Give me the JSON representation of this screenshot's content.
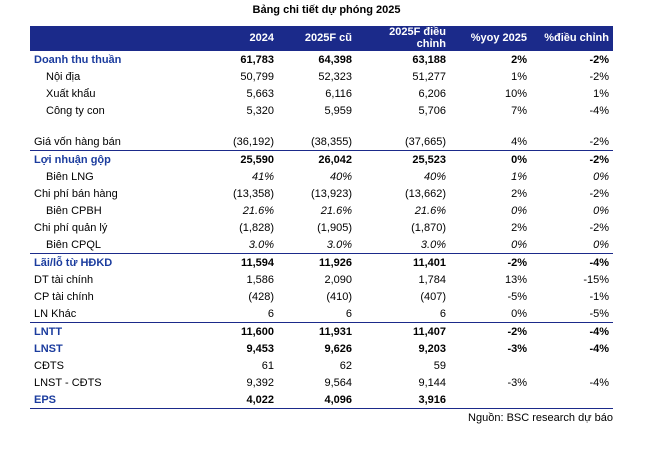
{
  "title": "Bảng chi tiết dự phóng 2025",
  "columns": [
    "",
    "2024",
    "2025F cũ",
    "2025F điều chỉnh",
    "%yoy 2025",
    "%điều chỉnh"
  ],
  "rows": [
    {
      "label": "Doanh thu thuần",
      "v2024": "61,783",
      "old": "64,398",
      "adj": "63,188",
      "yoy": "2%",
      "chg": "-2%"
    },
    {
      "label": "Nội địa",
      "v2024": "50,799",
      "old": "52,323",
      "adj": "51,277",
      "yoy": "1%",
      "chg": "-2%"
    },
    {
      "label": "Xuất khẩu",
      "v2024": "5,663",
      "old": "6,116",
      "adj": "6,206",
      "yoy": "10%",
      "chg": "1%"
    },
    {
      "label": "Công ty con",
      "v2024": "5,320",
      "old": "5,959",
      "adj": "5,706",
      "yoy": "7%",
      "chg": "-4%"
    },
    {
      "label": "Giá vốn hàng bán",
      "v2024": "(36,192)",
      "old": "(38,355)",
      "adj": "(37,665)",
      "yoy": "4%",
      "chg": "-2%"
    },
    {
      "label": "Lợi nhuận gộp",
      "v2024": "25,590",
      "old": "26,042",
      "adj": "25,523",
      "yoy": "0%",
      "chg": "-2%"
    },
    {
      "label": "Biên LNG",
      "v2024": "41%",
      "old": "40%",
      "adj": "40%",
      "yoy": "1%",
      "chg": "0%"
    },
    {
      "label": "Chi phí bán hàng",
      "v2024": "(13,358)",
      "old": "(13,923)",
      "adj": "(13,662)",
      "yoy": "2%",
      "chg": "-2%"
    },
    {
      "label": "Biên CPBH",
      "v2024": "21.6%",
      "old": "21.6%",
      "adj": "21.6%",
      "yoy": "0%",
      "chg": "0%"
    },
    {
      "label": "Chi phí quản lý",
      "v2024": "(1,828)",
      "old": "(1,905)",
      "adj": "(1,870)",
      "yoy": "2%",
      "chg": "-2%"
    },
    {
      "label": "Biên CPQL",
      "v2024": "3.0%",
      "old": "3.0%",
      "adj": "3.0%",
      "yoy": "0%",
      "chg": "0%"
    },
    {
      "label": "Lãi/lỗ từ HĐKD",
      "v2024": "11,594",
      "old": "11,926",
      "adj": "11,401",
      "yoy": "-2%",
      "chg": "-4%"
    },
    {
      "label": "DT tài chính",
      "v2024": "1,586",
      "old": "2,090",
      "adj": "1,784",
      "yoy": "13%",
      "chg": "-15%"
    },
    {
      "label": "CP tài chính",
      "v2024": "(428)",
      "old": "(410)",
      "adj": "(407)",
      "yoy": "-5%",
      "chg": "-1%"
    },
    {
      "label": "LN Khác",
      "v2024": "6",
      "old": "6",
      "adj": "6",
      "yoy": "0%",
      "chg": "-5%"
    },
    {
      "label": "LNTT",
      "v2024": "11,600",
      "old": "11,931",
      "adj": "11,407",
      "yoy": "-2%",
      "chg": "-4%"
    },
    {
      "label": "LNST",
      "v2024": "9,453",
      "old": "9,626",
      "adj": "9,203",
      "yoy": "-3%",
      "chg": "-4%"
    },
    {
      "label": "CĐTS",
      "v2024": "61",
      "old": "62",
      "adj": "59",
      "yoy": "",
      "chg": ""
    },
    {
      "label": "LNST - CĐTS",
      "v2024": "9,392",
      "old": "9,564",
      "adj": "9,144",
      "yoy": "-3%",
      "chg": "-4%"
    },
    {
      "label": "EPS",
      "v2024": "4,022",
      "old": "4,096",
      "adj": "3,916",
      "yoy": "",
      "chg": ""
    }
  ],
  "source": "Nguồn: BSC research dự báo",
  "colors": {
    "header_bg": "#1b2a8a",
    "header_text": "#ffffff",
    "accent_label": "#1b3c9e"
  }
}
